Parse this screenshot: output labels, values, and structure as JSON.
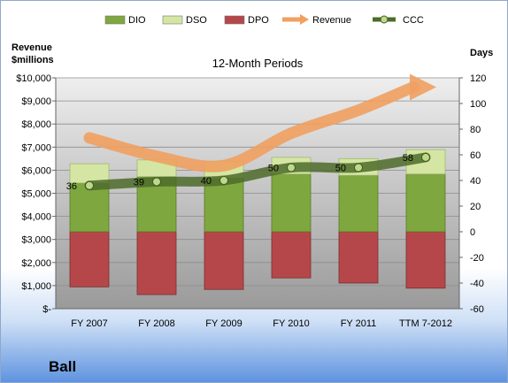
{
  "chart_data": {
    "type": "bar",
    "title": "12-Month Periods",
    "company": "Ball",
    "y_left": {
      "label_line1": "Revenue",
      "label_line2": "$millions",
      "range": [
        0,
        10000
      ],
      "ticks": [
        "$-",
        "$1,000",
        "$2,000",
        "$3,000",
        "$4,000",
        "$5,000",
        "$6,000",
        "$7,000",
        "$8,000",
        "$9,000",
        "$10,000"
      ]
    },
    "y_right": {
      "label": "Days",
      "range": [
        -60,
        120
      ],
      "ticks": [
        "-60",
        "-40",
        "-20",
        "0",
        "20",
        "40",
        "60",
        "80",
        "100",
        "120"
      ]
    },
    "categories": [
      "FY 2007",
      "FY 2008",
      "FY 2009",
      "FY 2010",
      "FY 2011",
      "TTM 7-2012"
    ],
    "legend": [
      {
        "name": "DIO",
        "swatch": "bar",
        "color": "#7fa73f"
      },
      {
        "name": "DSO",
        "swatch": "bar",
        "color": "#d5e6a4"
      },
      {
        "name": "DPO",
        "swatch": "bar",
        "color": "#b5474a"
      },
      {
        "name": "Revenue",
        "swatch": "arrow",
        "color": "#f0a060"
      },
      {
        "name": "CCC",
        "swatch": "line",
        "color": "#4d6b2a"
      }
    ],
    "series": [
      {
        "name": "DIO",
        "axis": "right",
        "values": [
          38,
          43,
          42,
          45,
          44,
          45
        ]
      },
      {
        "name": "DSO",
        "axis": "right",
        "values": [
          15,
          13,
          13,
          13,
          13,
          19
        ]
      },
      {
        "name": "DPO",
        "axis": "right",
        "values": [
          -43,
          -49,
          -45,
          -36,
          -40,
          -44
        ]
      },
      {
        "name": "Revenue",
        "axis": "left",
        "values": [
          7400,
          6600,
          6200,
          7600,
          8600,
          9600
        ]
      },
      {
        "name": "CCC",
        "axis": "right",
        "values": [
          36,
          39,
          40,
          50,
          50,
          58
        ],
        "labels": [
          "36",
          "39",
          "40",
          "50",
          "50",
          "58"
        ]
      }
    ],
    "grid": true,
    "legend_position": "top"
  }
}
